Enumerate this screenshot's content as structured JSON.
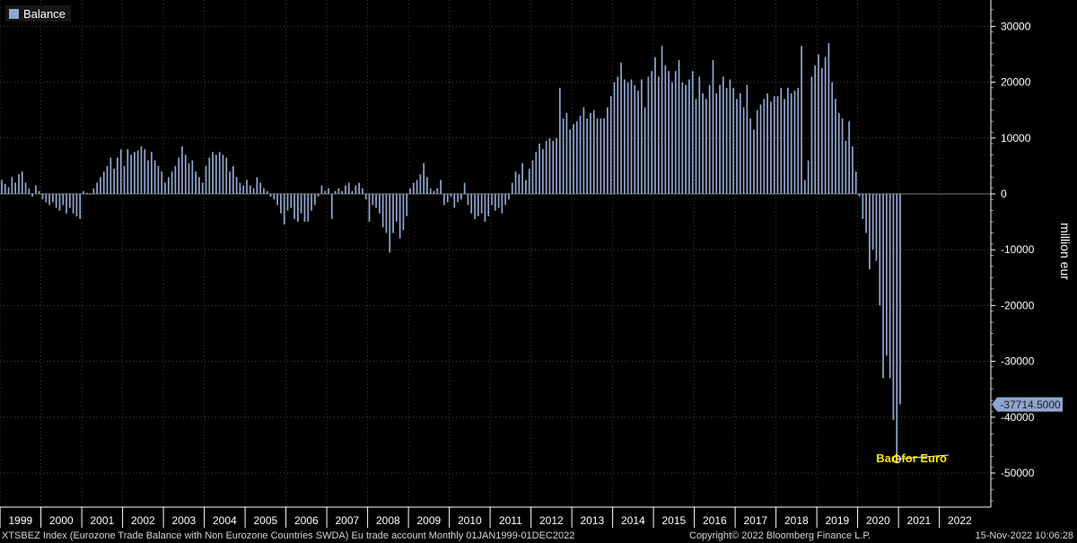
{
  "legend": {
    "label": "Balance",
    "color": "#8fa6cf"
  },
  "footer": {
    "description": "XTSBEZ Index (Eurozone Trade Balance with Non Eurozone Countries SWDA) Eu trade account  Monthly 01JAN1999-01DEC2022",
    "copyright": "Copyright© 2022 Bloomberg Finance L.P.",
    "timestamp": "15-Nov-2022 10:06:28"
  },
  "chart_data": {
    "type": "bar",
    "xlabel": "",
    "ylabel": "million eur",
    "ylim": [
      -55000,
      35000
    ],
    "y_ticks": [
      30000,
      20000,
      10000,
      0,
      -10000,
      -20000,
      -30000,
      -40000,
      -50000
    ],
    "grid": true,
    "legend_position": "top-left",
    "x_year_labels": [
      "1999",
      "2000",
      "2001",
      "2002",
      "2003",
      "2004",
      "2005",
      "2006",
      "2007",
      "2008",
      "2009",
      "2010",
      "2011",
      "2012",
      "2013",
      "2014",
      "2015",
      "2016",
      "2017",
      "2018",
      "2019",
      "2020",
      "2021",
      "2022"
    ],
    "last_value_label": "-37714.5000",
    "annotation": {
      "text": "Bad for Euro",
      "value": -47500,
      "color": "#ffe600"
    },
    "start": "1999-01",
    "series": [
      {
        "name": "Balance",
        "color": "#8fa6cf",
        "values": [
          2500,
          1800,
          1200,
          3000,
          2000,
          3500,
          4000,
          2000,
          1000,
          -500,
          1500,
          500,
          -1000,
          -1500,
          -2000,
          -1500,
          -2500,
          -3000,
          -2000,
          -3500,
          -2500,
          -3500,
          -4000,
          -4500,
          500,
          200,
          0,
          1000,
          2000,
          3000,
          4000,
          5000,
          6500,
          4500,
          6500,
          8000,
          5000,
          8000,
          7000,
          7500,
          7800,
          8500,
          8000,
          6000,
          7500,
          6000,
          5000,
          4000,
          2000,
          3000,
          4000,
          5000,
          6500,
          8500,
          7000,
          5500,
          6000,
          4000,
          3000,
          2000,
          5000,
          6500,
          7500,
          7000,
          7500,
          7000,
          6500,
          4000,
          5000,
          3000,
          2000,
          1500,
          2500,
          1500,
          1000,
          3000,
          2000,
          1000,
          500,
          -500,
          -1000,
          -2000,
          -3500,
          -5500,
          -3000,
          -2500,
          -4500,
          -5000,
          -3500,
          -5000,
          -5000,
          -3000,
          -2000,
          -500,
          1500,
          500,
          1000,
          -4500,
          500,
          1000,
          500,
          1500,
          2000,
          500,
          1500,
          2000,
          1000,
          -1000,
          -5000,
          -2000,
          -2500,
          -3500,
          -6000,
          -7000,
          -10500,
          -7000,
          -5000,
          -8000,
          -6500,
          -4000,
          1000,
          2000,
          2500,
          3500,
          5500,
          3000,
          1000,
          500,
          1000,
          2500,
          -2000,
          -1500,
          -500,
          -2500,
          -1500,
          -1000,
          2000,
          -2000,
          -3500,
          -4500,
          -4000,
          -3500,
          -5000,
          -4000,
          -2000,
          -3000,
          -2500,
          -3500,
          -2000,
          -1000,
          2000,
          4000,
          3500,
          5500,
          2500,
          4500,
          6000,
          7500,
          9000,
          8000,
          9500,
          10000,
          9500,
          10000,
          19000,
          13500,
          14500,
          11500,
          12500,
          13000,
          14000,
          15500,
          13500,
          14500,
          15000,
          13500,
          13500,
          13500,
          15500,
          17500,
          20000,
          21000,
          23500,
          20500,
          20000,
          20500,
          19500,
          18500,
          20500,
          15500,
          21000,
          22000,
          24500,
          21000,
          26500,
          23000,
          22000,
          20000,
          22000,
          24000,
          20000,
          19500,
          20500,
          22000,
          17000,
          21000,
          18000,
          17000,
          19500,
          24000,
          18000,
          19500,
          21000,
          19000,
          20500,
          19000,
          17000,
          18000,
          15500,
          19500,
          13500,
          11500,
          15000,
          16000,
          17000,
          18000,
          16500,
          17500,
          17500,
          19000,
          17000,
          19000,
          18000,
          18500,
          19000,
          26500,
          2500,
          6000,
          21000,
          23000,
          25000,
          22500,
          24500,
          27000,
          20000,
          17000,
          14500,
          13500,
          9500,
          13000,
          8500,
          4000,
          -500,
          -4500,
          -7000,
          -13500,
          -10000,
          -12000,
          -20000,
          -33000,
          -29000,
          -33000,
          -40500,
          -47500,
          -37714.5
        ]
      }
    ]
  }
}
